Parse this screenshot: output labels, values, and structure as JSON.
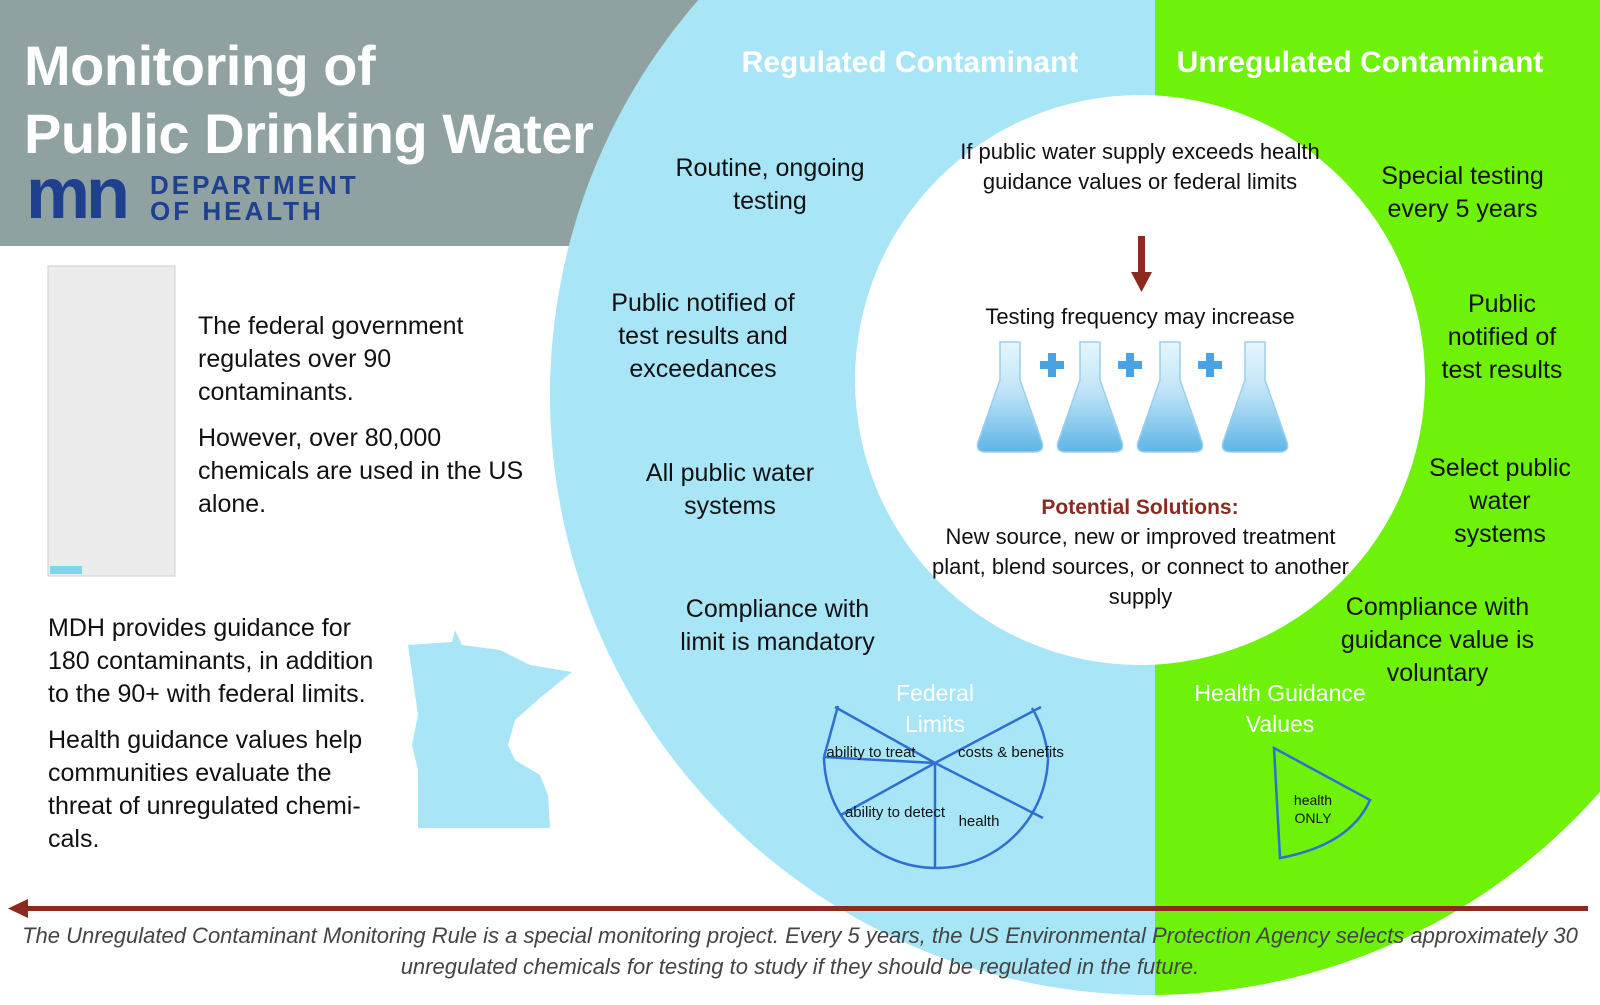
{
  "header": {
    "title_line1": "Monitoring of",
    "title_line2": "Public Drinking Water",
    "logo_mark": "mn",
    "dept_line1": "DEPARTMENT",
    "dept_line2": "OF HEALTH"
  },
  "left_panel": {
    "federal_text": "The federal government regulates over 90 contaminants.",
    "chemicals_text": "However, over 80,000 chemicals are used in the US alone.",
    "mdh_text": "MDH provides guidance for 180 contaminants, in addition to the 90+ with federal limits.",
    "guidance_text": "Health guidance values help communities evaluate the threat of unregulated chemi-cals."
  },
  "regulated": {
    "heading": "Regulated Contaminant",
    "items": [
      "Routine, ongoing testing",
      "Public notified of test results and exceedances",
      "All public water systems",
      "Compliance with limit is mandatory"
    ],
    "pie_title": "Federal Limits",
    "pie_slices": [
      "ability to treat",
      "costs & benefits",
      "ability to detect",
      "health"
    ]
  },
  "unregulated": {
    "heading": "Unregulated Contaminant",
    "items": [
      "Special testing every 5 years",
      "Public notified of test results",
      "Select public water systems",
      "Compliance with guidance value is voluntary"
    ],
    "pie_title": "Health Guidance Values",
    "pie_slice": "health ONLY"
  },
  "center": {
    "trigger": "If public water supply exceeds health guidance values or federal limits",
    "frequency": "Testing frequency may increase",
    "solutions_title": "Potential Solutions:",
    "solutions_text": "New source, new or improved treatment plant, blend sources, or connect to another supply"
  },
  "footer": {
    "text": "The Unregulated Contaminant Monitoring Rule is a special monitoring project. Every 5 years, the US Environmental Protection Agency selects approximately 30 unregulated chemicals for testing to study if they should be regulated in the future."
  },
  "colors": {
    "gray_band": "#8fa1a1",
    "light_blue": "#a8e6f7",
    "lime_green": "#6ef20a",
    "dark_red": "#8b2b1f",
    "navy": "#1f3f8f"
  }
}
